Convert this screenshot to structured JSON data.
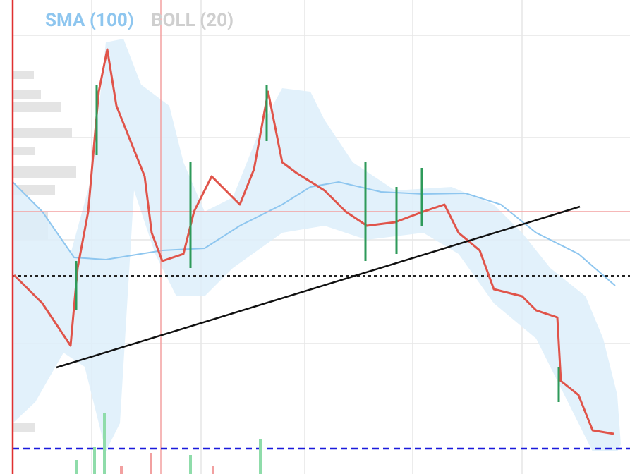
{
  "legend": {
    "indicators": [
      "SMA (100)",
      "BOLL (20)"
    ]
  }
}
